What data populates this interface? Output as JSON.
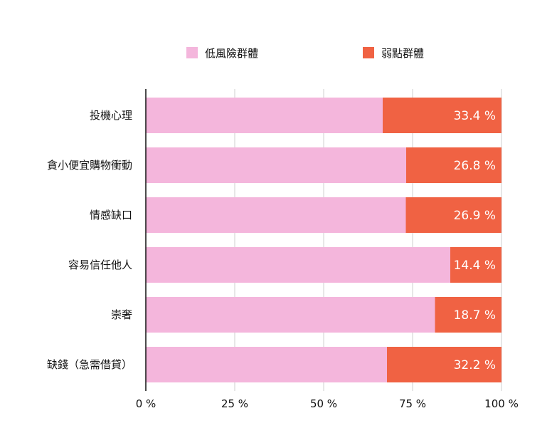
{
  "chart_data": {
    "type": "bar",
    "orientation": "horizontal",
    "stacked": true,
    "categories": [
      "投機心理",
      "貪小便宜購物衝動",
      "情感缺口",
      "容易信任他人",
      "崇奢",
      "缺錢（急需借貸）"
    ],
    "series": [
      {
        "name": "低風險群體",
        "color": "#f4b6dc",
        "values": [
          66.6,
          73.2,
          73.1,
          85.6,
          81.3,
          67.8
        ]
      },
      {
        "name": "弱點群體",
        "color": "#f06243",
        "values": [
          33.4,
          26.8,
          26.9,
          14.4,
          18.7,
          32.2
        ],
        "labels": [
          "33.4 %",
          "26.8 %",
          "26.9 %",
          "14.4 %",
          "18.7 %",
          "32.2 %"
        ]
      }
    ],
    "xlim": [
      0,
      100
    ],
    "xticks": [
      0,
      25,
      50,
      75,
      100
    ],
    "xtick_labels": [
      "0 %",
      "25 %",
      "50 %",
      "75 %",
      "100 %"
    ],
    "grid": true,
    "legend_position": "top",
    "title": "",
    "xlabel": "",
    "ylabel": ""
  }
}
